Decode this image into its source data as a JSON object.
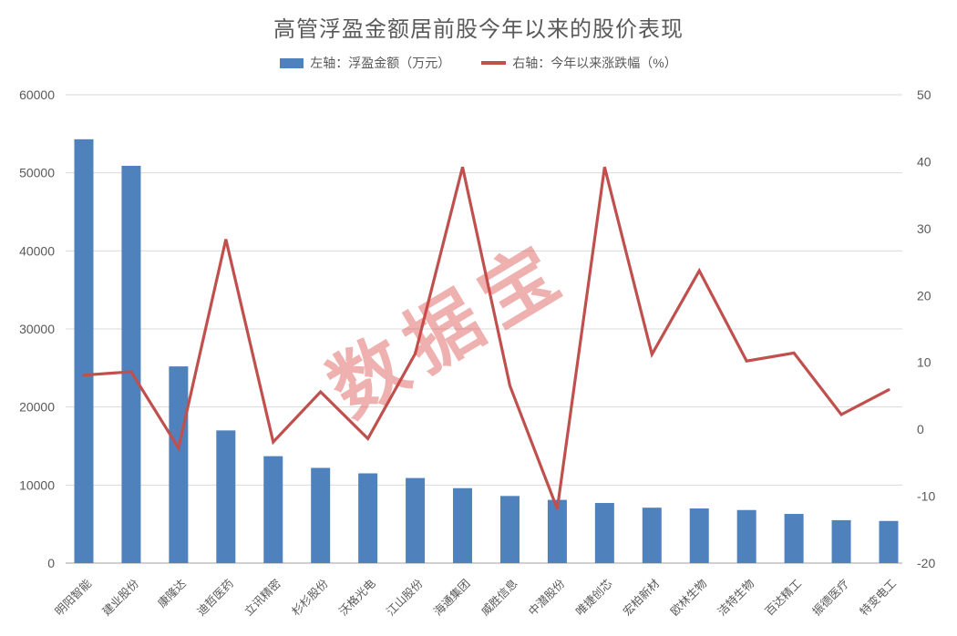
{
  "title": "高管浮盈金额居前股今年以来的股价表现",
  "legend": {
    "bar_label": "左轴：浮盈金额（万元）",
    "line_label": "右轴：今年以来涨跌幅（%）"
  },
  "watermark": "数据宝",
  "colors": {
    "bar": "#4f81bd",
    "line": "#c0504d",
    "text": "#595959",
    "tick_text": "#595959",
    "grid": "#d9d9d9",
    "axis_line": "#c0c0c0",
    "watermark": "rgba(214,69,65,0.42)"
  },
  "chart_data": {
    "type": "combo",
    "title": "高管浮盈金额居前股今年以来的股价表现",
    "categories": [
      "明阳智能",
      "建业股份",
      "康隆达",
      "迪哲医药",
      "立讯精密",
      "杉杉股份",
      "沃格光电",
      "江山股份",
      "海通集团",
      "威胜信息",
      "中潜股份",
      "唯捷创芯",
      "宏柏新材",
      "欧林生物",
      "洁特生物",
      "百达精工",
      "振德医疗",
      "特变电工"
    ],
    "series": [
      {
        "name": "左轴：浮盈金额（万元）",
        "type": "bar",
        "axis": "left",
        "values": [
          54300,
          50900,
          25200,
          17000,
          13700,
          12200,
          11500,
          10900,
          9600,
          8600,
          8100,
          7700,
          7100,
          7000,
          6800,
          6300,
          5500,
          5400
        ]
      },
      {
        "name": "右轴：今年以来涨跌幅（%）",
        "type": "line",
        "axis": "right",
        "values": [
          8.1,
          8.6,
          -2.8,
          28.4,
          -1.9,
          5.6,
          -1.4,
          11.3,
          39.2,
          6.5,
          -11.9,
          39.2,
          11.2,
          23.7,
          10.2,
          11.4,
          2.2,
          5.9
        ]
      }
    ],
    "left_axis": {
      "range": [
        0,
        60000
      ],
      "ticks": [
        60000,
        50000,
        40000,
        30000,
        20000,
        10000,
        0
      ]
    },
    "right_axis": {
      "range": [
        -20,
        50
      ],
      "ticks": [
        50,
        40,
        30,
        20,
        10,
        0,
        -10,
        -20
      ]
    },
    "grid": "horizontal gridlines at left-axis ticks",
    "legend_position": "top",
    "xlabel": "",
    "ylabel_left": "浮盈金额（万元）",
    "ylabel_right": "今年以来涨跌幅（%）"
  }
}
